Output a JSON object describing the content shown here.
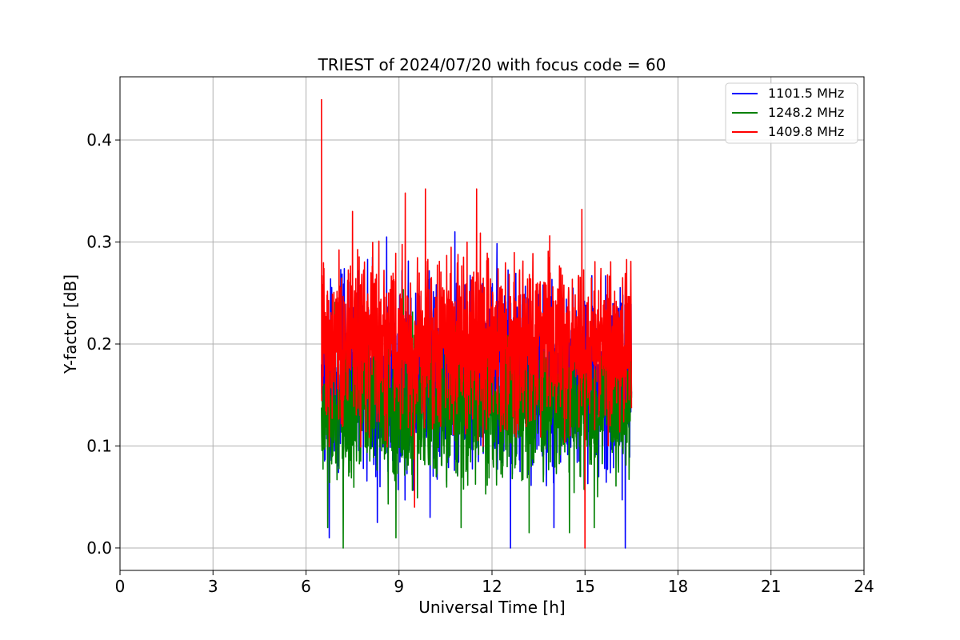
{
  "chart_data": {
    "type": "line",
    "title": "TRIEST of 2024/07/20 with focus code = 60",
    "xlabel": "Universal Time [h]",
    "ylabel": "Y-factor [dB]",
    "xlim": [
      0,
      24
    ],
    "ylim": [
      -0.022,
      0.462
    ],
    "xticks": [
      0,
      3,
      6,
      9,
      12,
      15,
      18,
      21,
      24
    ],
    "yticks": [
      0.0,
      0.1,
      0.2,
      0.3,
      0.4
    ],
    "grid": true,
    "legend_position": "top-right",
    "series": [
      {
        "name": "1101.5 MHz",
        "color": "#0000ff",
        "x_range": [
          6.5,
          16.5
        ],
        "mean": 0.165,
        "noise": 0.055,
        "min": 0.0,
        "max": 0.31,
        "spikes": [
          [
            6.75,
            0.01
          ],
          [
            8.3,
            0.025
          ],
          [
            10.8,
            0.31
          ],
          [
            12.6,
            0.0
          ],
          [
            14.0,
            0.02
          ],
          [
            16.3,
            0.0
          ],
          [
            8.6,
            0.305
          ],
          [
            10.0,
            0.03
          ]
        ]
      },
      {
        "name": "1248.2 MHz",
        "color": "#008000",
        "x_range": [
          6.5,
          16.5
        ],
        "mean": 0.14,
        "noise": 0.045,
        "min": 0.0,
        "max": 0.28,
        "spikes": [
          [
            7.2,
            0.0
          ],
          [
            6.7,
            0.02
          ],
          [
            8.9,
            0.01
          ],
          [
            11.0,
            0.02
          ],
          [
            13.2,
            0.015
          ],
          [
            14.5,
            0.015
          ],
          [
            15.3,
            0.02
          ]
        ]
      },
      {
        "name": "1409.8 MHz",
        "color": "#ff0000",
        "x_range": [
          6.5,
          16.5
        ],
        "mean": 0.2,
        "noise": 0.05,
        "min": 0.0,
        "max": 0.44,
        "spikes": [
          [
            6.5,
            0.44
          ],
          [
            9.85,
            0.352
          ],
          [
            11.5,
            0.352
          ],
          [
            9.2,
            0.348
          ],
          [
            14.9,
            0.332
          ],
          [
            15.0,
            0.0
          ],
          [
            9.5,
            0.04
          ],
          [
            7.5,
            0.33
          ]
        ]
      }
    ]
  }
}
